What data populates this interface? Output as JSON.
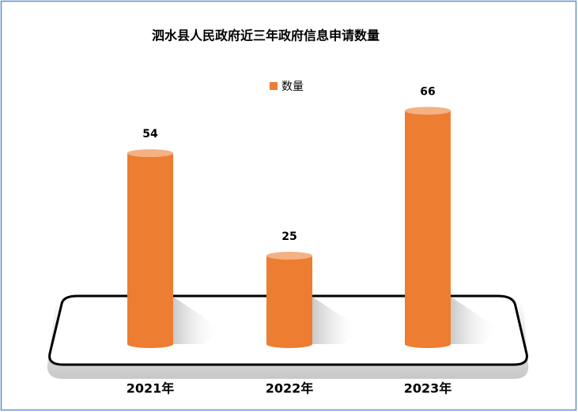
{
  "chart_data": {
    "type": "bar",
    "title": "泗水县人民政府近三年政府信息申请数量",
    "categories": [
      "2021年",
      "2022年",
      "2023年"
    ],
    "series": [
      {
        "name": "数量",
        "color": "#ED7D31",
        "values": [
          54,
          25,
          66
        ]
      }
    ]
  }
}
